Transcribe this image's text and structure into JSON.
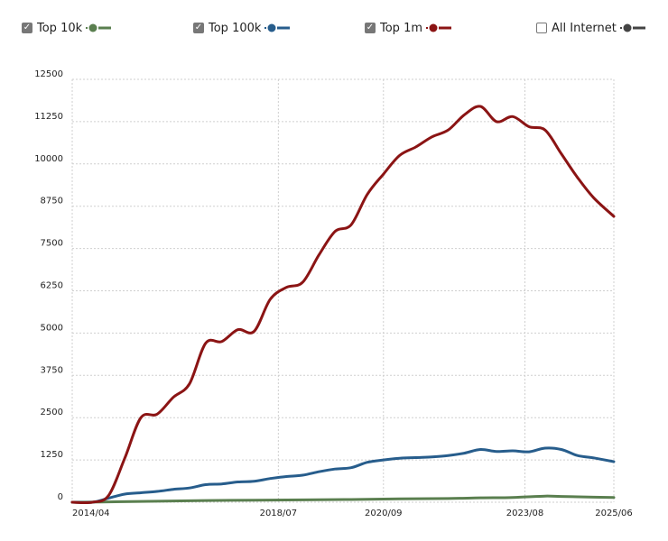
{
  "legend": {
    "items": [
      {
        "label": "Top 10k",
        "checked": true,
        "color": "#5a7f4f"
      },
      {
        "label": "Top 100k",
        "checked": true,
        "color": "#275d8c"
      },
      {
        "label": "Top 1m",
        "checked": true,
        "color": "#8b1414"
      },
      {
        "label": "All Internet",
        "checked": false,
        "color": "#444444"
      }
    ]
  },
  "chart_data": {
    "type": "line",
    "title": "",
    "xlabel": "",
    "ylabel": "",
    "ylim": [
      0,
      12500
    ],
    "y_ticks": [
      "0",
      "1250",
      "2500",
      "3750",
      "5000",
      "6250",
      "7500",
      "8750",
      "10000",
      "11250",
      "12500"
    ],
    "x_ticks": [
      "2014/04",
      "2018/07",
      "2020/09",
      "2023/08",
      "2025/06"
    ],
    "grid": true,
    "legend_position": "top",
    "series": [
      {
        "name": "Top 1m",
        "color": "#8b1414",
        "points": [
          [
            "2014/04",
            0
          ],
          [
            "2014/09",
            0
          ],
          [
            "2015/01",
            200
          ],
          [
            "2015/05",
            1300
          ],
          [
            "2015/09",
            2500
          ],
          [
            "2016/01",
            2600
          ],
          [
            "2016/05",
            3100
          ],
          [
            "2016/09",
            3500
          ],
          [
            "2017/01",
            4700
          ],
          [
            "2017/05",
            4750
          ],
          [
            "2017/09",
            5100
          ],
          [
            "2018/01",
            5050
          ],
          [
            "2018/05",
            6000
          ],
          [
            "2018/09",
            6350
          ],
          [
            "2019/01",
            6500
          ],
          [
            "2019/05",
            7300
          ],
          [
            "2019/09",
            8000
          ],
          [
            "2020/01",
            8200
          ],
          [
            "2020/05",
            9100
          ],
          [
            "2020/09",
            9700
          ],
          [
            "2021/01",
            10250
          ],
          [
            "2021/05",
            10500
          ],
          [
            "2021/09",
            10800
          ],
          [
            "2022/01",
            11000
          ],
          [
            "2022/05",
            11450
          ],
          [
            "2022/09",
            11700
          ],
          [
            "2023/01",
            11250
          ],
          [
            "2023/05",
            11400
          ],
          [
            "2023/09",
            11100
          ],
          [
            "2024/01",
            11000
          ],
          [
            "2024/05",
            10300
          ],
          [
            "2024/09",
            9600
          ],
          [
            "2025/01",
            9000
          ],
          [
            "2025/06",
            8450
          ]
        ]
      },
      {
        "name": "Top 100k",
        "color": "#275d8c",
        "points": [
          [
            "2014/04",
            0
          ],
          [
            "2014/09",
            0
          ],
          [
            "2015/01",
            120
          ],
          [
            "2015/05",
            240
          ],
          [
            "2015/09",
            280
          ],
          [
            "2016/01",
            320
          ],
          [
            "2016/05",
            380
          ],
          [
            "2016/09",
            420
          ],
          [
            "2017/01",
            520
          ],
          [
            "2017/05",
            540
          ],
          [
            "2017/09",
            600
          ],
          [
            "2018/01",
            620
          ],
          [
            "2018/05",
            700
          ],
          [
            "2018/09",
            760
          ],
          [
            "2019/01",
            800
          ],
          [
            "2019/05",
            900
          ],
          [
            "2019/09",
            980
          ],
          [
            "2020/01",
            1020
          ],
          [
            "2020/05",
            1180
          ],
          [
            "2020/09",
            1250
          ],
          [
            "2021/01",
            1300
          ],
          [
            "2021/05",
            1320
          ],
          [
            "2021/09",
            1340
          ],
          [
            "2022/01",
            1380
          ],
          [
            "2022/05",
            1450
          ],
          [
            "2022/09",
            1560
          ],
          [
            "2023/01",
            1500
          ],
          [
            "2023/05",
            1520
          ],
          [
            "2023/09",
            1490
          ],
          [
            "2024/01",
            1600
          ],
          [
            "2024/05",
            1560
          ],
          [
            "2024/09",
            1380
          ],
          [
            "2025/01",
            1310
          ],
          [
            "2025/06",
            1200
          ]
        ]
      },
      {
        "name": "Top 10k",
        "color": "#5a7f4f",
        "points": [
          [
            "2014/04",
            0
          ],
          [
            "2015/01",
            10
          ],
          [
            "2016/01",
            30
          ],
          [
            "2017/01",
            50
          ],
          [
            "2018/01",
            60
          ],
          [
            "2019/01",
            70
          ],
          [
            "2020/01",
            80
          ],
          [
            "2021/01",
            100
          ],
          [
            "2022/01",
            110
          ],
          [
            "2022/09",
            130
          ],
          [
            "2023/05",
            140
          ],
          [
            "2024/01",
            180
          ],
          [
            "2024/05",
            170
          ],
          [
            "2025/01",
            150
          ],
          [
            "2025/06",
            140
          ]
        ]
      }
    ]
  }
}
